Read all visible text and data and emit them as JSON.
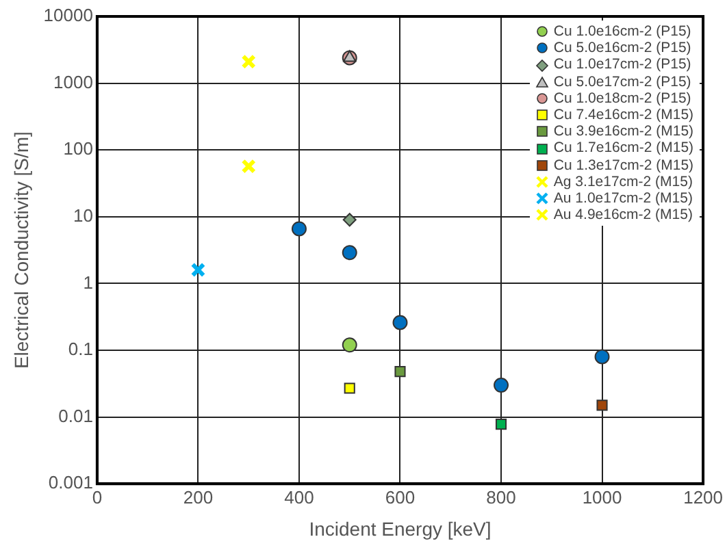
{
  "chart_data": {
    "type": "scatter",
    "xlabel": "Incident Energy [keV]",
    "ylabel": "Electrical Conductivity [S/m]",
    "log": "y",
    "grid": true,
    "legend": "top right",
    "xlim": [
      0,
      1200
    ],
    "xticks": [
      0,
      200,
      400,
      600,
      800,
      1000,
      1200
    ],
    "ylim": [
      0.001,
      10000
    ],
    "yticks": [
      0.001,
      0.01,
      0.1,
      1,
      10,
      100,
      1000,
      10000
    ],
    "series": [
      {
        "name": "Cu 1.0e16cm-2 (P15)",
        "color": "#92d050",
        "marker": "circle",
        "x": [
          500
        ],
        "values": [
          0.12
        ]
      },
      {
        "name": "Cu 5.0e16cm-2 (P15)",
        "color": "#0070c0",
        "marker": "circle",
        "x": [
          400,
          500,
          600,
          800,
          1000
        ],
        "values": [
          6.6,
          2.9,
          0.26,
          0.03,
          0.08
        ]
      },
      {
        "name": "Cu 1.0e17cm-2 (P15)",
        "color": "#7f9f7f",
        "marker": "diamond",
        "x": [
          500
        ],
        "values": [
          9
        ]
      },
      {
        "name": "Cu 5.0e17cm-2 (P15)",
        "color": "#bfbfbf",
        "marker": "triangle",
        "x": [
          500
        ],
        "values": [
          2400
        ]
      },
      {
        "name": "Cu 1.0e18cm-2 (P15)",
        "color": "#d99694",
        "marker": "circle",
        "x": [
          500
        ],
        "values": [
          2400
        ]
      },
      {
        "name": "Cu 7.4e16cm-2 (M15)",
        "color": "#ffff00",
        "marker": "square",
        "x": [
          500
        ],
        "values": [
          0.027
        ]
      },
      {
        "name": "Cu 3.9e16cm-2 (M15)",
        "color": "#6a9a3f",
        "marker": "square",
        "x": [
          600
        ],
        "values": [
          0.048
        ]
      },
      {
        "name": "Cu 1.7e16cm-2 (M15)",
        "color": "#00b050",
        "marker": "square",
        "x": [
          800
        ],
        "values": [
          0.0078
        ]
      },
      {
        "name": "Cu 1.3e17cm-2 (M15)",
        "color": "#a0460a",
        "marker": "square",
        "x": [
          1000
        ],
        "values": [
          0.015
        ]
      },
      {
        "name": "Ag 3.1e17cm-2 (M15)",
        "color": "#ffff00",
        "marker": "cross",
        "x": [
          300
        ],
        "values": [
          2100
        ]
      },
      {
        "name": "Au 1.0e17cm-2 (M15)",
        "color": "#00b0f0",
        "marker": "cross",
        "x": [
          200
        ],
        "values": [
          1.6
        ]
      },
      {
        "name": "Au 4.9e16cm-2 (M15)",
        "color": "#ffff00",
        "marker": "cross",
        "x": [
          300
        ],
        "values": [
          57
        ]
      }
    ]
  }
}
